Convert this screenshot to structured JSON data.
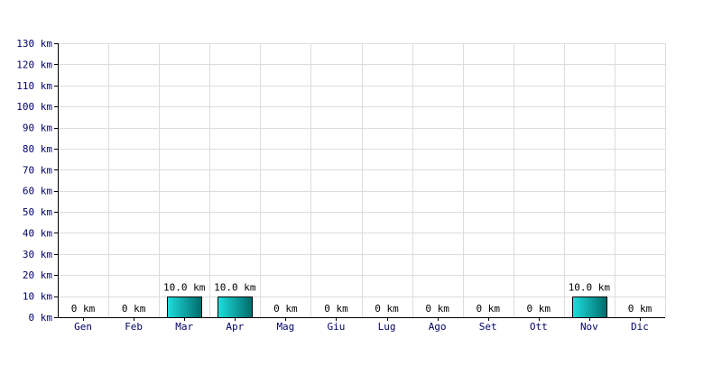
{
  "chart_data": {
    "type": "bar",
    "categories": [
      "Gen",
      "Feb",
      "Mar",
      "Apr",
      "Mag",
      "Giu",
      "Lug",
      "Ago",
      "Set",
      "Ott",
      "Nov",
      "Dic"
    ],
    "values": [
      0,
      0,
      10,
      10,
      0,
      0,
      0,
      0,
      0,
      0,
      10,
      0
    ],
    "data_labels": [
      "0 km",
      "0 km",
      "10.0 km",
      "10.0 km",
      "0 km",
      "0 km",
      "0 km",
      "0 km",
      "0 km",
      "0 km",
      "10.0 km",
      "0 km"
    ],
    "title": "",
    "xlabel": "",
    "ylabel": "",
    "unit": "km",
    "ylim": [
      0,
      130
    ],
    "yticks": [
      0,
      10,
      20,
      30,
      40,
      50,
      60,
      70,
      80,
      90,
      100,
      110,
      120,
      130
    ],
    "ytick_labels": [
      "0 km",
      "10 km",
      "20 km",
      "30 km",
      "40 km",
      "50 km",
      "60 km",
      "70 km",
      "80 km",
      "90 km",
      "100 km",
      "110 km",
      "120 km",
      "130 km"
    ],
    "grid": true,
    "legend": "none",
    "colors": {
      "bar_left": "#1fdede",
      "bar_right": "#006a6a",
      "bar_stroke": "#000000",
      "grid": "#dddddd",
      "axis": "#000000",
      "tick_text": "#000066",
      "label_text": "#000000"
    }
  }
}
